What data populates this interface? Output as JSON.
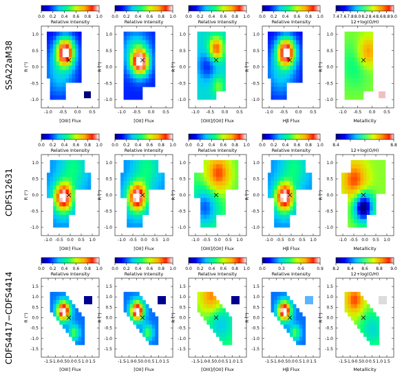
{
  "rows": [
    {
      "name": "SSA22aM38",
      "y_ticks": [
        "1.0",
        "0.5",
        "0.0",
        "-0.5",
        "-1.0"
      ],
      "x_ticks": [
        "-1.0",
        "-0.5",
        "0.0",
        "0.5"
      ],
      "panels": [
        {
          "cbar_ticks": [
            "0.0",
            "0.2",
            "0.4",
            "0.6",
            "0.8",
            "1.0"
          ],
          "cbar_label": "Relative Intensity",
          "xlabel": "[OIII] Flux",
          "cmap": "jet",
          "pattern": 0
        },
        {
          "cbar_ticks": [
            "0.0",
            "0.2",
            "0.4",
            "0.6",
            "0.8",
            "1.0"
          ],
          "cbar_label": "Relative Intensity",
          "xlabel": "[OII] Flux",
          "cmap": "jet",
          "pattern": 1
        },
        {
          "cbar_ticks": [
            "0.0",
            "0.2",
            "0.4",
            "0.6",
            "0.8",
            "1.0"
          ],
          "cbar_label": "Relative Intensity",
          "xlabel": "[OIII]/[OII] Flux",
          "cmap": "jet",
          "pattern": 2
        },
        {
          "cbar_ticks": [
            "0.0",
            "0.2",
            "0.4",
            "0.6",
            "0.8",
            "1.0"
          ],
          "cbar_label": "Relative Intensity",
          "xlabel": "Hβ Flux",
          "cmap": "jet",
          "pattern": 3
        },
        {
          "cbar_ticks": [
            "7.4",
            "7.6",
            "7.8",
            "8.0",
            "8.2",
            "8.4",
            "8.6",
            "8.8",
            "9.0"
          ],
          "cbar_label": "12+log(O/H)",
          "xlabel": "Metallicity",
          "cmap": "metal",
          "pattern": 4
        }
      ]
    },
    {
      "name": "CDFS12631",
      "y_ticks": [
        "1.0",
        "0.5",
        "0.0",
        "-0.5",
        "-1.0"
      ],
      "x_ticks": [
        "-1.0",
        "-0.5",
        "0.0",
        "0.5",
        "1.0"
      ],
      "panels": [
        {
          "cbar_ticks": [
            "0.0",
            "0.2",
            "0.4",
            "0.6",
            "0.8",
            "1.0"
          ],
          "cbar_label": "Relative Intensity",
          "xlabel": "[OIII] Flux",
          "cmap": "jet",
          "pattern": 5
        },
        {
          "cbar_ticks": [
            "0.0",
            "0.2",
            "0.4",
            "0.6",
            "0.8",
            "1.0"
          ],
          "cbar_label": "Relative Intensity",
          "xlabel": "[OII] Flux",
          "cmap": "jet",
          "pattern": 6
        },
        {
          "cbar_ticks": [
            "0.0",
            "0.2",
            "0.4",
            "0.6",
            "0.8",
            "1.0"
          ],
          "cbar_label": "Relative Intensity",
          "xlabel": "[OIII]/[OII] Flux",
          "cmap": "jet",
          "pattern": 7
        },
        {
          "cbar_ticks": [
            "0.0",
            "0.2",
            "0.4",
            "0.6",
            "0.8",
            "1.0"
          ],
          "cbar_label": "Relative Intensity",
          "xlabel": "Hβ Flux",
          "cmap": "jet",
          "pattern": 8
        },
        {
          "cbar_ticks": [
            "8.4",
            "",
            "",
            "",
            "8.8"
          ],
          "cbar_label": "12+log(O/H)",
          "xlabel": "Metallicity",
          "cmap": "metal",
          "pattern": 9
        }
      ]
    },
    {
      "name": "CDFS4417−CDFS4414",
      "y_ticks": [
        "1.5",
        "1.0",
        "0.5",
        "0.0",
        "-0.5",
        "-1.0",
        "-1.5"
      ],
      "x_ticks": [
        "-1.5",
        "-1.0",
        "-0.5",
        "0.0",
        "0.5",
        "1.0",
        "1.5"
      ],
      "panels": [
        {
          "cbar_ticks": [
            "0.0",
            "0.2",
            "0.4",
            "0.6",
            "0.8",
            "1.0"
          ],
          "cbar_label": "Relative Intensity",
          "xlabel": "[OIII] Flux",
          "cmap": "jet",
          "pattern": 10
        },
        {
          "cbar_ticks": [
            "0.0",
            "0.2",
            "0.4",
            "0.6",
            "0.8",
            "1.0"
          ],
          "cbar_label": "Relative Intensity",
          "xlabel": "[OII] Flux",
          "cmap": "jet",
          "pattern": 11
        },
        {
          "cbar_ticks": [
            "0.0",
            "0.2",
            "0.4",
            "0.6",
            "0.8",
            "1.0"
          ],
          "cbar_label": "Relative Intensity",
          "xlabel": "[OIII]/[OII] Flux",
          "cmap": "jet",
          "pattern": 12
        },
        {
          "cbar_ticks": [
            "0.0",
            "0.3",
            "0.6",
            "0.9"
          ],
          "cbar_label": "Relative Intensity",
          "xlabel": "Hβ Flux",
          "cmap": "jet",
          "pattern": 13
        },
        {
          "cbar_ticks": [
            "8.2",
            "8.4",
            "8.6",
            "8.8",
            "9.0"
          ],
          "cbar_label": "12+log(O/H)",
          "xlabel": "Metallicity",
          "cmap": "metal",
          "pattern": 14
        }
      ]
    }
  ],
  "y_axis_label": "R (\")"
}
